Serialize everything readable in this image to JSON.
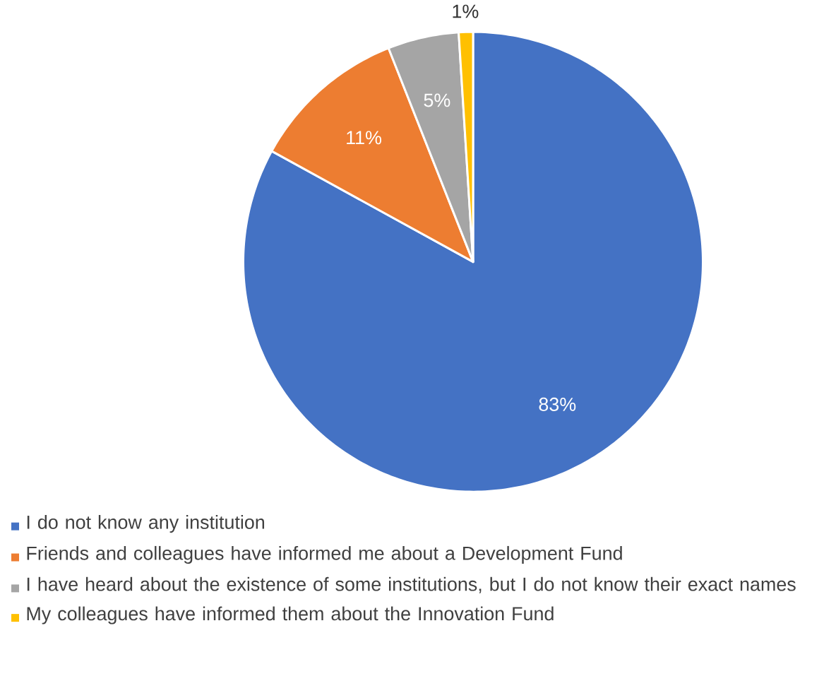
{
  "chart_data": {
    "type": "pie",
    "categories": [
      "I do not know any institution",
      "Friends and colleagues have informed me about a Development Fund",
      "I have heard about the existence of some institutions, but I do not know their exact names",
      "My colleagues have informed them about the Innovation Fund"
    ],
    "values": [
      83,
      11,
      5,
      1
    ],
    "colors": [
      "#4472c4",
      "#ed7d31",
      "#a5a5a5",
      "#ffc000"
    ],
    "value_labels": [
      "83%",
      "11%",
      "5%",
      "1%"
    ],
    "legend": "bottom"
  }
}
